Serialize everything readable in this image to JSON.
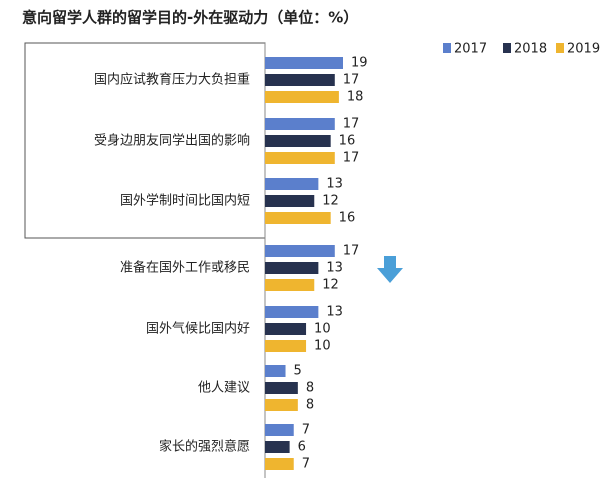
{
  "chart_data": {
    "type": "hbar",
    "title": "意向留学人群的留学目的-外在驱动力（单位：%）",
    "categories": [
      "国内应试教育压力大负担重",
      "受身边朋友同学出国的影响",
      "国外学制时间比国内短",
      "准备在国外工作或移民",
      "国外气候比国内好",
      "他人建议",
      "家长的强烈意愿"
    ],
    "series": [
      {
        "name": "2017",
        "color": "#5b7fcc",
        "values": [
          19,
          17,
          13,
          17,
          13,
          5,
          7
        ]
      },
      {
        "name": "2018",
        "color": "#27324f",
        "values": [
          17,
          16,
          12,
          13,
          10,
          8,
          6
        ]
      },
      {
        "name": "2019",
        "color": "#efb52f",
        "values": [
          18,
          17,
          16,
          12,
          10,
          8,
          7
        ]
      }
    ],
    "legend": "top-right"
  }
}
